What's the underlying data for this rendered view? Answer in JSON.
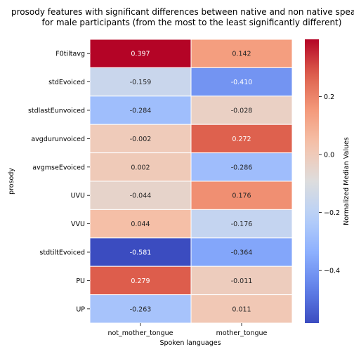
{
  "chart_data": {
    "type": "heatmap",
    "title_lines": [
      "prosody features with significant differences between native and non native speakers",
      "for male participants (from the most to the least significantly different)"
    ],
    "xlabel": "Spoken languages",
    "ylabel": "prosody",
    "x_categories": [
      "not_mother_tongue",
      "mother_tongue"
    ],
    "y_categories": [
      "F0tiltavg",
      "stdEvoiced",
      "stdlastEunvoiced",
      "avgdurunvoiced",
      "avgmseEvoiced",
      "UVU",
      "VVU",
      "stdtiltEvoiced",
      "PU",
      "UP"
    ],
    "values": [
      [
        0.397,
        0.142
      ],
      [
        -0.159,
        -0.41
      ],
      [
        -0.284,
        -0.028
      ],
      [
        -0.002,
        0.272
      ],
      [
        0.002,
        -0.286
      ],
      [
        -0.044,
        0.176
      ],
      [
        0.044,
        -0.176
      ],
      [
        -0.581,
        -0.364
      ],
      [
        0.279,
        -0.011
      ],
      [
        -0.263,
        0.011
      ]
    ],
    "value_labels": [
      [
        "0.397",
        "0.142"
      ],
      [
        "-0.159",
        "-0.410"
      ],
      [
        "-0.284",
        "-0.028"
      ],
      [
        "-0.002",
        "0.272"
      ],
      [
        "0.002",
        "-0.286"
      ],
      [
        "-0.044",
        "0.176"
      ],
      [
        "0.044",
        "-0.176"
      ],
      [
        "-0.581",
        "-0.364"
      ],
      [
        "0.279",
        "-0.011"
      ],
      [
        "-0.263",
        "0.011"
      ]
    ],
    "colormap": "coolwarm",
    "vmin": -0.581,
    "vmax": 0.397,
    "colorbar": {
      "label": "Normalized Median Values",
      "ticks": [
        0.2,
        0.0,
        -0.2,
        -0.4
      ],
      "tick_labels": [
        "0.2",
        "0.0",
        "−0.2",
        "−0.4"
      ]
    }
  }
}
